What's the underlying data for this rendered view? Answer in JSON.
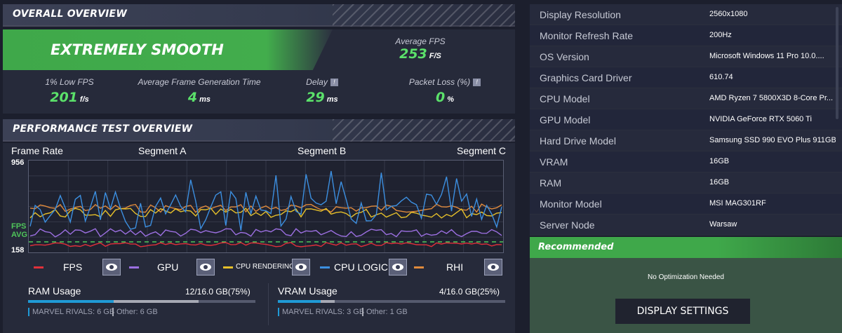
{
  "overview": {
    "title": "OVERALL OVERVIEW",
    "status": "EXTREMELY SMOOTH",
    "avg_fps_label": "Average FPS",
    "avg_fps_value": "253",
    "avg_fps_unit": "F/S",
    "metrics": [
      {
        "label": "1% Low FPS",
        "value": "201",
        "unit": "f/s"
      },
      {
        "label": "Average Frame Generation Time",
        "value": "4",
        "unit": "ms"
      },
      {
        "label": "Delay",
        "value": "29",
        "unit": "ms",
        "help": "!"
      },
      {
        "label": "Packet Loss (%)",
        "value": "0",
        "unit": "%",
        "help": "!"
      }
    ]
  },
  "performance": {
    "title": "PERFORMANCE TEST OVERVIEW",
    "frame_rate_label": "Frame Rate",
    "segments": [
      "Segment A",
      "Segment B",
      "Segment C"
    ],
    "y_max": "956",
    "y_min": "158",
    "fps_avg_label_1": "FPS",
    "fps_avg_label_2": "AVG",
    "legend": [
      {
        "label": "FPS",
        "color": "#e0303a"
      },
      {
        "label": "GPU",
        "color": "#9b6fe0"
      },
      {
        "label": "CPU RENDERING",
        "color": "#e6c02a"
      },
      {
        "label": "CPU LOGIC",
        "color": "#3c8fe0"
      },
      {
        "label": "RHI",
        "color": "#e08a3c"
      }
    ],
    "eye_icon": "eye-icon",
    "ram": {
      "label": "RAM Usage",
      "value": "12/16.0 GB(75%)",
      "fraction": 0.75,
      "marvel": "MARVEL RIVALS: 6 GB",
      "other": "Other: 6 GB",
      "marvel_fraction": 0.375
    },
    "vram": {
      "label": "VRAM Usage",
      "value": "4/16.0 GB(25%)",
      "fraction": 0.25,
      "marvel": "MARVEL RIVALS: 3 GB",
      "other": "Other: 1 GB",
      "marvel_fraction": 0.1875
    }
  },
  "system_info": [
    {
      "key": "Display Resolution",
      "value": "2560x1080"
    },
    {
      "key": "Monitor Refresh Rate",
      "value": "200Hz"
    },
    {
      "key": "OS Version",
      "value": "Microsoft Windows 11 Pro 10.0...."
    },
    {
      "key": "Graphics Card Driver",
      "value": "610.74"
    },
    {
      "key": "CPU Model",
      "value": "AMD Ryzen 7 5800X3D 8-Core Pr..."
    },
    {
      "key": "GPU Model",
      "value": "NVIDIA GeForce RTX 5060 Ti"
    },
    {
      "key": "Hard Drive Model",
      "value": "Samsung SSD 990 EVO Plus 911GB"
    },
    {
      "key": "VRAM",
      "value": "16GB"
    },
    {
      "key": "RAM",
      "value": "16GB"
    },
    {
      "key": "Monitor Model",
      "value": "MSI MAG301RF"
    },
    {
      "key": "Server Node",
      "value": "Warsaw"
    }
  ],
  "recommended": {
    "title": "Recommended",
    "message": "No Optimization Needed",
    "button": "DISPLAY SETTINGS"
  },
  "colors": {
    "accent_green": "#3fa84a",
    "value_green": "#5be16a"
  }
}
